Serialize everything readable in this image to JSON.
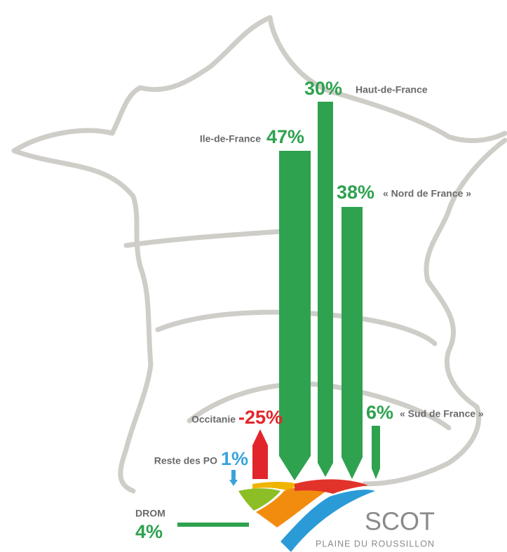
{
  "flows": [
    {
      "label": "Ile-de-France",
      "value": "47%"
    },
    {
      "label": "Haut-de-France",
      "value": "30%"
    },
    {
      "label": "« Nord de France »",
      "value": "38%"
    },
    {
      "label": "« Sud de France »",
      "value": "6%"
    },
    {
      "label": "Occitanie",
      "value": "-25%"
    },
    {
      "label": "Reste des PO",
      "value": "1%"
    },
    {
      "label": "DROM",
      "value": "4%"
    }
  ],
  "logo": {
    "title": "SCOT",
    "subtitle": "PLAINE DU ROUSSILLON"
  }
}
